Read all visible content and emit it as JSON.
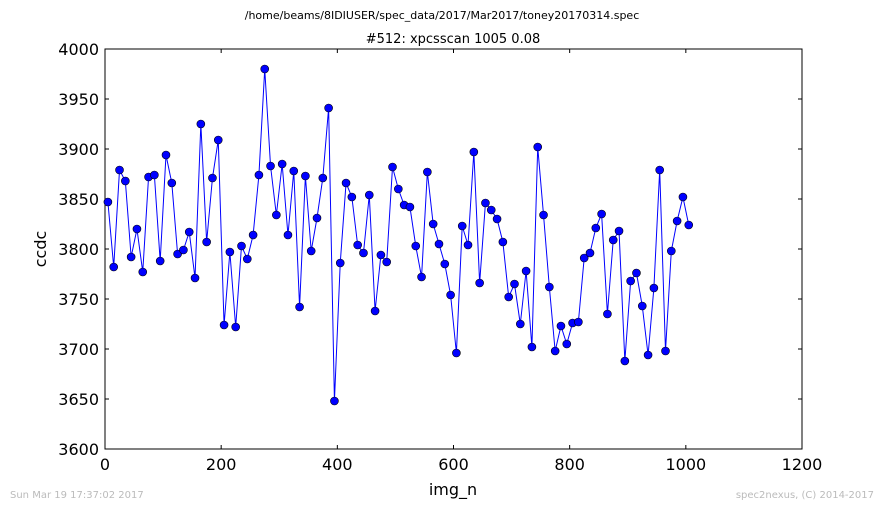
{
  "chart_data": {
    "type": "line",
    "suptitle": "/home/beams/8IDIUSER/spec_data/2017/Mar2017/toney20170314.spec",
    "title": "#512: xpcsscan 1005 0.08",
    "xlabel": "img_n",
    "ylabel": "ccdc",
    "xlim": [
      0,
      1200
    ],
    "ylim": [
      3600,
      4000
    ],
    "xticks": [
      0,
      200,
      400,
      600,
      800,
      1000,
      1200
    ],
    "yticks": [
      3600,
      3650,
      3700,
      3750,
      3800,
      3850,
      3900,
      3950,
      4000
    ],
    "grid": false,
    "legend": "none",
    "marker": "circle",
    "series": [
      {
        "color": "#0000ff",
        "x": [
          5,
          15,
          25,
          35,
          45,
          55,
          65,
          75,
          85,
          95,
          105,
          115,
          125,
          135,
          145,
          155,
          165,
          175,
          185,
          195,
          205,
          215,
          225,
          235,
          245,
          255,
          265,
          275,
          285,
          295,
          305,
          315,
          325,
          335,
          345,
          355,
          365,
          375,
          385,
          395,
          405,
          415,
          425,
          435,
          445,
          455,
          465,
          475,
          485,
          495,
          505,
          515,
          525,
          535,
          545,
          555,
          565,
          575,
          585,
          595,
          605,
          615,
          625,
          635,
          645,
          655,
          665,
          675,
          685,
          695,
          705,
          715,
          725,
          735,
          745,
          755,
          765,
          775,
          785,
          795,
          805,
          815,
          825,
          835,
          845,
          855,
          865,
          875,
          885,
          895,
          905,
          915,
          925,
          935,
          945,
          955,
          965,
          975,
          985,
          995,
          1005
        ],
        "y": [
          3847,
          3782,
          3879,
          3868,
          3792,
          3820,
          3777,
          3872,
          3874,
          3788,
          3894,
          3866,
          3795,
          3799,
          3817,
          3771,
          3925,
          3807,
          3871,
          3909,
          3724,
          3797,
          3722,
          3803,
          3790,
          3814,
          3874,
          3980,
          3883,
          3834,
          3885,
          3814,
          3878,
          3742,
          3873,
          3798,
          3831,
          3871,
          3941,
          3648,
          3786,
          3866,
          3852,
          3804,
          3796,
          3854,
          3738,
          3794,
          3787,
          3882,
          3860,
          3844,
          3842,
          3803,
          3772,
          3877,
          3825,
          3805,
          3785,
          3754,
          3696,
          3823,
          3804,
          3897,
          3766,
          3846,
          3839,
          3830,
          3807,
          3752,
          3765,
          3725,
          3778,
          3702,
          3902,
          3834,
          3762,
          3698,
          3723,
          3705,
          3726,
          3727,
          3791,
          3796,
          3821,
          3835,
          3735,
          3809,
          3818,
          3688,
          3768,
          3776,
          3743,
          3694,
          3761,
          3879,
          3698,
          3798,
          3828,
          3852,
          3824
        ]
      }
    ],
    "footer_left": "Sun Mar 19 17:37:02 2017",
    "footer_right": "spec2nexus, (C) 2014-2017"
  }
}
